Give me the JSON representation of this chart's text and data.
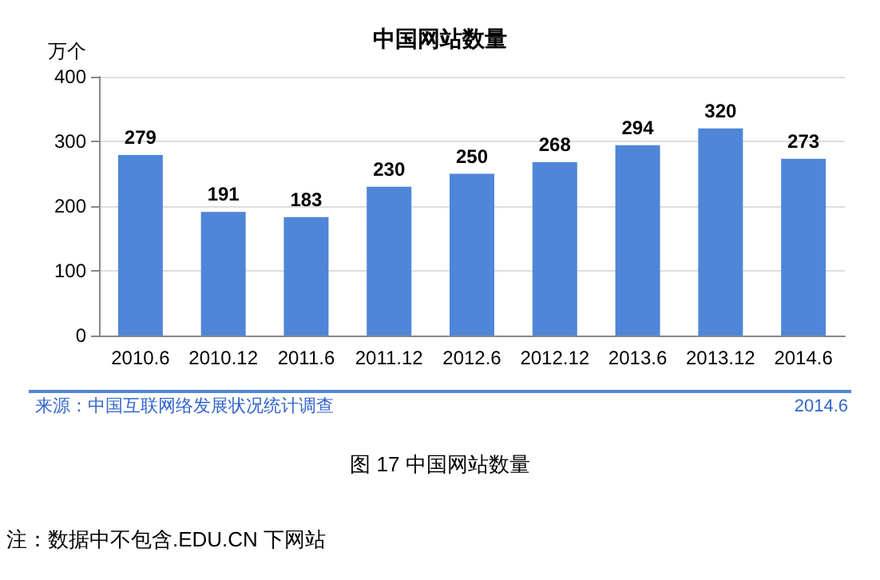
{
  "chart_data": {
    "type": "bar",
    "title": "中国网站数量",
    "ylabel": "万个",
    "categories": [
      "2010.6",
      "2010.12",
      "2011.6",
      "2011.12",
      "2012.6",
      "2012.12",
      "2013.6",
      "2013.12",
      "2014.6"
    ],
    "values": [
      279,
      191,
      183,
      230,
      250,
      268,
      294,
      320,
      273
    ],
    "color": "#4f86d8",
    "ylim": [
      0,
      400
    ],
    "yticks": [
      0,
      100,
      200,
      300,
      400
    ],
    "grid": "y",
    "data_labels": true,
    "annotations": [
      "来源：中国互联网络发展状况统计调查",
      "2014.6",
      "图 17 中国网站数量",
      "注：数据中不包含.EDU.CN 下网站"
    ]
  }
}
